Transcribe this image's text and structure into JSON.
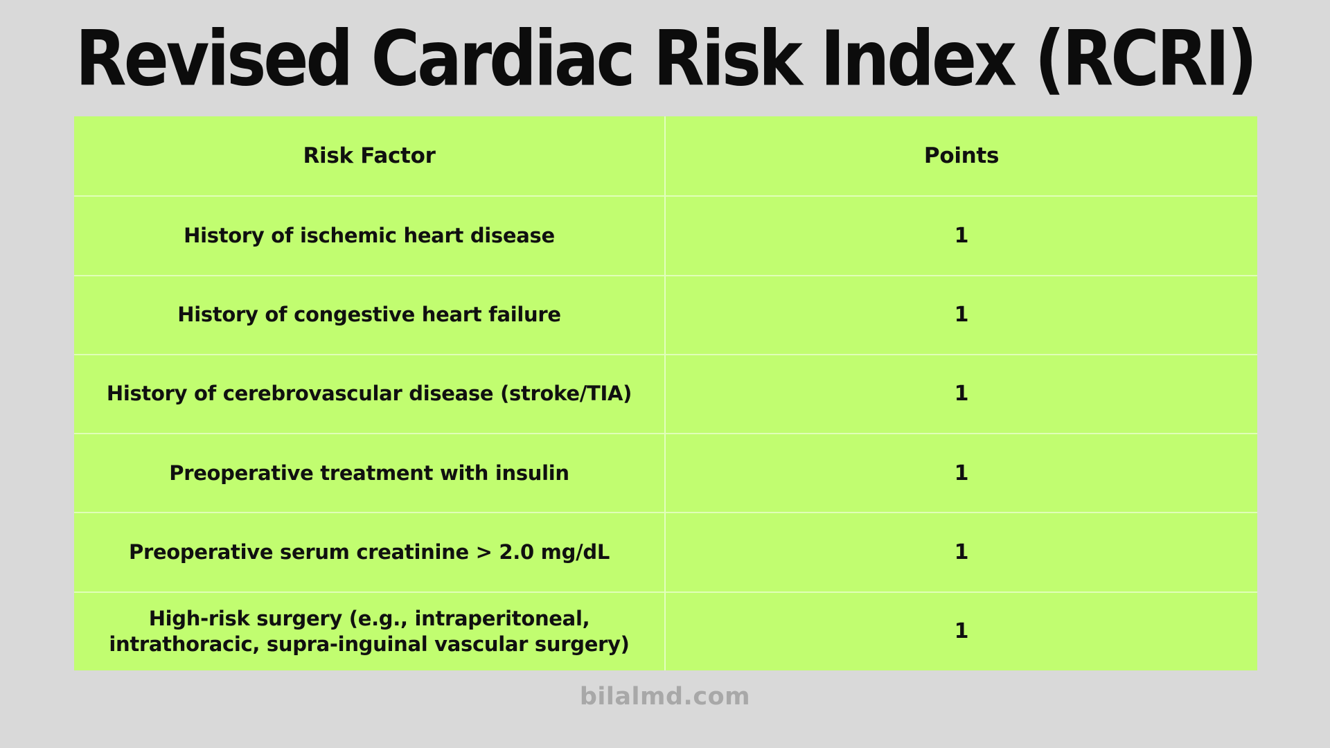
{
  "title": "Revised Cardiac Risk Index (RCRI)",
  "watermark": "bilalmd.com",
  "colors": {
    "background": "#d9d9d9",
    "table_green": "#c1fd70",
    "divider": "rgba(255,255,255,0.55)",
    "title_text": "#0c0c0c",
    "cell_text": "#101010",
    "watermark_text": "#a8a8a8"
  },
  "table": {
    "headers": {
      "risk_factor": "Risk Factor",
      "points": "Points"
    },
    "rows": [
      {
        "risk_factor": "History of ischemic heart disease",
        "points": "1"
      },
      {
        "risk_factor": "History of congestive heart failure",
        "points": "1"
      },
      {
        "risk_factor": "History of cerebrovascular disease (stroke/TIA)",
        "points": "1"
      },
      {
        "risk_factor": "Preoperative treatment with insulin",
        "points": "1"
      },
      {
        "risk_factor": "Preoperative serum creatinine > 2.0 mg/dL",
        "points": "1"
      },
      {
        "risk_factor": "High-risk surgery (e.g., intraperitoneal, intrathoracic, supra-inguinal vascular surgery)",
        "points": "1"
      }
    ]
  },
  "chart_data": {
    "type": "table",
    "title": "Revised Cardiac Risk Index (RCRI)",
    "columns": [
      "Risk Factor",
      "Points"
    ],
    "rows": [
      [
        "History of ischemic heart disease",
        1
      ],
      [
        "History of congestive heart failure",
        1
      ],
      [
        "History of cerebrovascular disease (stroke/TIA)",
        1
      ],
      [
        "Preoperative treatment with insulin",
        1
      ],
      [
        "Preoperative serum creatinine > 2.0 mg/dL",
        1
      ],
      [
        "High-risk surgery (e.g., intraperitoneal, intrathoracic, supra-inguinal vascular surgery)",
        1
      ]
    ],
    "layout": {
      "columns_split": "50/50",
      "header_row": true,
      "cell_alignment": "center"
    }
  }
}
